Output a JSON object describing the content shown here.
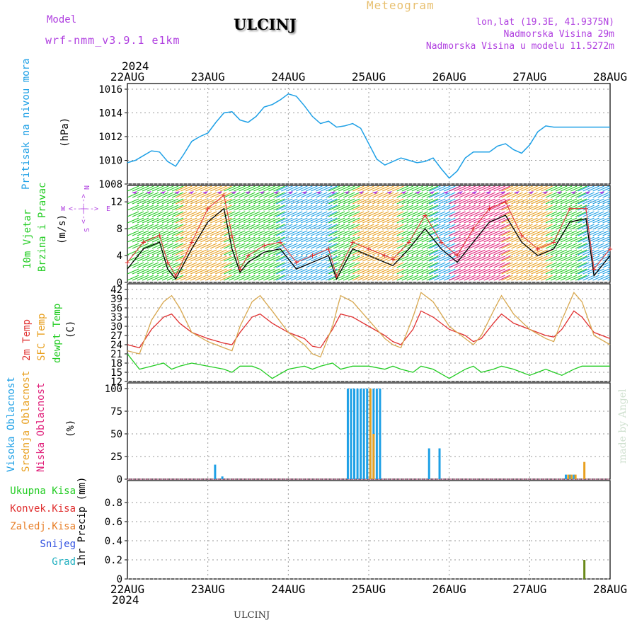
{
  "header": {
    "meteogram": "Meteogram",
    "model_label": "Model",
    "model_name": "wrf-nmm_v3.9.1 e1km",
    "station": "ULCINJ",
    "lonlat": "lon,lat (19.3E, 41.9375N)",
    "elevation": "Nadmorska Visina 29m",
    "model_elevation": "Nadmorska Visina u modelu 11.5272m",
    "year_top": "2024",
    "year_bottom": "2024",
    "footer_station": "ULCINJ",
    "made_by": "made by Angel"
  },
  "colors": {
    "cyan": "#1ea0e6",
    "green": "#22cc22",
    "orange": "#e8a020",
    "tan": "#d8a850",
    "red": "#e03030",
    "magenta": "#e0207a",
    "purple": "#b040e0",
    "blue": "#3050e0",
    "olive": "#6a8a1a"
  },
  "chart_data": [
    {
      "type": "line",
      "panel": "pressure",
      "ylabel_main": "Pritisak na nivou mora",
      "ylabel_unit": "(hPa)",
      "x_ticks": [
        "22AUG",
        "23AUG",
        "24AUG",
        "25AUG",
        "26AUG",
        "27AUG",
        "28AUG"
      ],
      "ylim": [
        1008,
        1016
      ],
      "yticks": [
        "1008",
        "1010",
        "1012",
        "1014",
        "1016"
      ],
      "grid": true,
      "series": [
        {
          "x": [
            0,
            0.1,
            0.2,
            0.3,
            0.4,
            0.5,
            0.6,
            0.7,
            0.8,
            0.9,
            1.0,
            1.1,
            1.2,
            1.3,
            1.4,
            1.5,
            1.6,
            1.7,
            1.8,
            1.9,
            2.0,
            2.1,
            2.2,
            2.3,
            2.4,
            2.5,
            2.6,
            2.7,
            2.8,
            2.9,
            3.0,
            3.1,
            3.2,
            3.3,
            3.4,
            3.5,
            3.6,
            3.7,
            3.8,
            3.9,
            4.0,
            4.1,
            4.2,
            4.3,
            4.4,
            4.5,
            4.6,
            4.7,
            4.8,
            4.9,
            5.0,
            5.1,
            5.2,
            5.3,
            5.4,
            5.5,
            5.6,
            5.7,
            5.8,
            5.9,
            6.0
          ],
          "y": [
            1009.8,
            1010.0,
            1010.4,
            1010.8,
            1010.7,
            1009.9,
            1009.5,
            1010.5,
            1011.6,
            1012.0,
            1012.3,
            1013.2,
            1014.0,
            1014.1,
            1013.4,
            1013.2,
            1013.7,
            1014.5,
            1014.7,
            1015.1,
            1015.6,
            1015.4,
            1014.6,
            1013.7,
            1013.1,
            1013.3,
            1012.8,
            1012.9,
            1013.1,
            1012.7,
            1011.4,
            1010.1,
            1009.6,
            1009.9,
            1010.2,
            1010.0,
            1009.8,
            1009.9,
            1010.2,
            1009.3,
            1008.5,
            1009.1,
            1010.2,
            1010.7,
            1010.7,
            1010.7,
            1011.2,
            1011.4,
            1010.9,
            1010.6,
            1011.3,
            1012.4,
            1012.9,
            1012.8,
            1012.8,
            1012.8,
            1012.8,
            1012.8,
            1012.8,
            1012.8,
            1012.8
          ]
        }
      ]
    },
    {
      "type": "line",
      "panel": "wind",
      "ylabel_main": "10m Vjetar",
      "ylabel_sub": "Brzina i Pravac",
      "ylabel_unit": "(m/s)",
      "compass": {
        "w": "W",
        "e": "E",
        "n": "N",
        "s": "S",
        "arrow": "<--|-->"
      },
      "ylim": [
        0,
        13.6
      ],
      "yticks": [
        "0",
        "4",
        "8",
        "12"
      ],
      "grid": true,
      "series": [
        {
          "name": "speed",
          "color": "black",
          "x": [
            0,
            0.2,
            0.4,
            0.5,
            0.6,
            0.8,
            1.0,
            1.2,
            1.3,
            1.4,
            1.5,
            1.7,
            1.9,
            2.1,
            2.3,
            2.5,
            2.6,
            2.8,
            3.0,
            3.2,
            3.3,
            3.5,
            3.7,
            3.9,
            4.1,
            4.3,
            4.5,
            4.7,
            4.9,
            5.1,
            5.3,
            5.5,
            5.7,
            5.8,
            6.0
          ],
          "y": [
            2,
            5,
            6,
            2,
            0.5,
            5,
            9,
            11,
            5,
            1.5,
            3,
            4.5,
            5,
            2,
            3,
            4,
            0.5,
            5,
            4,
            3,
            2.5,
            5,
            8,
            5,
            3,
            6,
            9,
            10,
            6,
            4,
            5,
            9,
            9.5,
            1,
            4
          ]
        },
        {
          "name": "gust",
          "color": "red",
          "marker": "+",
          "x": [
            0,
            0.2,
            0.4,
            0.5,
            0.6,
            0.8,
            1.0,
            1.2,
            1.3,
            1.4,
            1.5,
            1.7,
            1.9,
            2.1,
            2.3,
            2.5,
            2.6,
            2.8,
            3.0,
            3.2,
            3.3,
            3.5,
            3.7,
            3.9,
            4.1,
            4.3,
            4.5,
            4.7,
            4.9,
            5.1,
            5.3,
            5.5,
            5.7,
            5.8,
            6.0
          ],
          "y": [
            3,
            6,
            7,
            3,
            1,
            6,
            11,
            13,
            7,
            2,
            4,
            5.5,
            6,
            3,
            4,
            5,
            1,
            6,
            5,
            4,
            3.5,
            6,
            10,
            6,
            4,
            8,
            11,
            12,
            7,
            5,
            6,
            11,
            11,
            2,
            5
          ]
        }
      ]
    },
    {
      "type": "line",
      "panel": "temperature",
      "ylabel_lines": [
        "2m Temp",
        "SFC Temp",
        "dewpt Temp"
      ],
      "ylabel_unit": "(C)",
      "ylim": [
        12,
        42
      ],
      "yticks": [
        "12",
        "15",
        "18",
        "21",
        "24",
        "27",
        "30",
        "33",
        "36",
        "39",
        "42"
      ],
      "grid": true,
      "x": [
        0,
        0.15,
        0.3,
        0.45,
        0.55,
        0.65,
        0.8,
        1.0,
        1.2,
        1.3,
        1.4,
        1.55,
        1.65,
        1.8,
        2.0,
        2.2,
        2.3,
        2.4,
        2.55,
        2.65,
        2.8,
        3.0,
        3.2,
        3.3,
        3.4,
        3.55,
        3.65,
        3.8,
        4.0,
        4.2,
        4.3,
        4.4,
        4.55,
        4.65,
        4.8,
        5.0,
        5.2,
        5.3,
        5.4,
        5.55,
        5.65,
        5.8,
        6.0
      ],
      "series": [
        {
          "name": "2m Temp",
          "color": "red",
          "y": [
            24,
            23,
            29,
            33,
            34,
            31,
            28,
            26,
            24.5,
            24,
            28,
            33,
            34,
            31,
            28,
            26,
            23.5,
            23,
            29,
            34,
            33,
            30,
            27,
            25,
            24,
            29,
            35,
            33,
            29,
            27,
            25,
            26,
            31,
            34,
            31,
            29,
            27,
            26.5,
            29,
            35,
            33,
            28,
            26
          ]
        },
        {
          "name": "SFC Temp",
          "color": "tan",
          "y": [
            22,
            21,
            32,
            38,
            40,
            36,
            28,
            25,
            23,
            22,
            30,
            38,
            40,
            35,
            28,
            24,
            21,
            20,
            30,
            40,
            38,
            32,
            26,
            24,
            23,
            33,
            41,
            38,
            30,
            26,
            24,
            27,
            35,
            40,
            34,
            29,
            26,
            25,
            32,
            41,
            38,
            27,
            24
          ]
        },
        {
          "name": "dewpt Temp",
          "color": "green",
          "y": [
            21,
            16,
            17,
            18,
            16,
            17,
            18,
            17,
            16,
            15,
            17,
            17,
            16,
            13,
            16,
            17,
            16,
            17,
            18,
            16,
            17,
            17,
            16,
            17,
            16,
            15,
            17,
            16,
            13,
            16,
            17,
            15,
            16,
            17,
            16,
            14,
            16,
            15,
            14,
            16,
            17,
            17,
            17
          ]
        }
      ]
    },
    {
      "type": "bar",
      "panel": "cloud",
      "ylabel_lines": [
        "Visoka Oblacnost",
        "Srednja Oblacnost",
        "Niska Oblacnost"
      ],
      "ylabel_unit": "(%)",
      "ylim": [
        0,
        100
      ],
      "yticks": [
        "0",
        "25",
        "50",
        "75",
        "100"
      ],
      "grid": true,
      "series": [
        {
          "name": "Visoka Oblacnost",
          "color": "cyan",
          "x": [
            1.09,
            1.18,
            2.74,
            2.78,
            2.82,
            2.86,
            2.9,
            2.94,
            2.98,
            3.02,
            3.06,
            3.1,
            3.14,
            3.75,
            3.88,
            5.45,
            5.5,
            5.55
          ],
          "y": [
            16,
            3,
            100,
            100,
            100,
            100,
            100,
            100,
            100,
            100,
            100,
            100,
            100,
            34,
            34,
            5,
            5,
            5
          ]
        },
        {
          "name": "Srednja Oblacnost",
          "color": "orange",
          "x": [
            3.02,
            3.06,
            5.48,
            5.52,
            5.57,
            5.68
          ],
          "y": [
            100,
            50,
            5,
            5,
            5,
            19
          ]
        }
      ]
    },
    {
      "type": "bar",
      "panel": "precip",
      "ylabel_unit": "1hr Precip (mm)",
      "legend": [
        {
          "label": "Ukupna Kisa",
          "color": "green"
        },
        {
          "label": "Konvek.Kisa",
          "color": "red"
        },
        {
          "label": "Zaledj.Kisa",
          "color": "orange"
        },
        {
          "label": "Snijeg",
          "color": "blue"
        },
        {
          "label": "Grad",
          "color": "cyan"
        }
      ],
      "ylim": [
        0,
        0.97
      ],
      "yticks": [
        "0",
        "0.2",
        "0.4",
        "0.6",
        "0.8"
      ],
      "grid": true,
      "series": [
        {
          "name": "Ukupna Kisa",
          "x": [
            5.68
          ],
          "y": [
            0.2
          ]
        }
      ]
    }
  ]
}
